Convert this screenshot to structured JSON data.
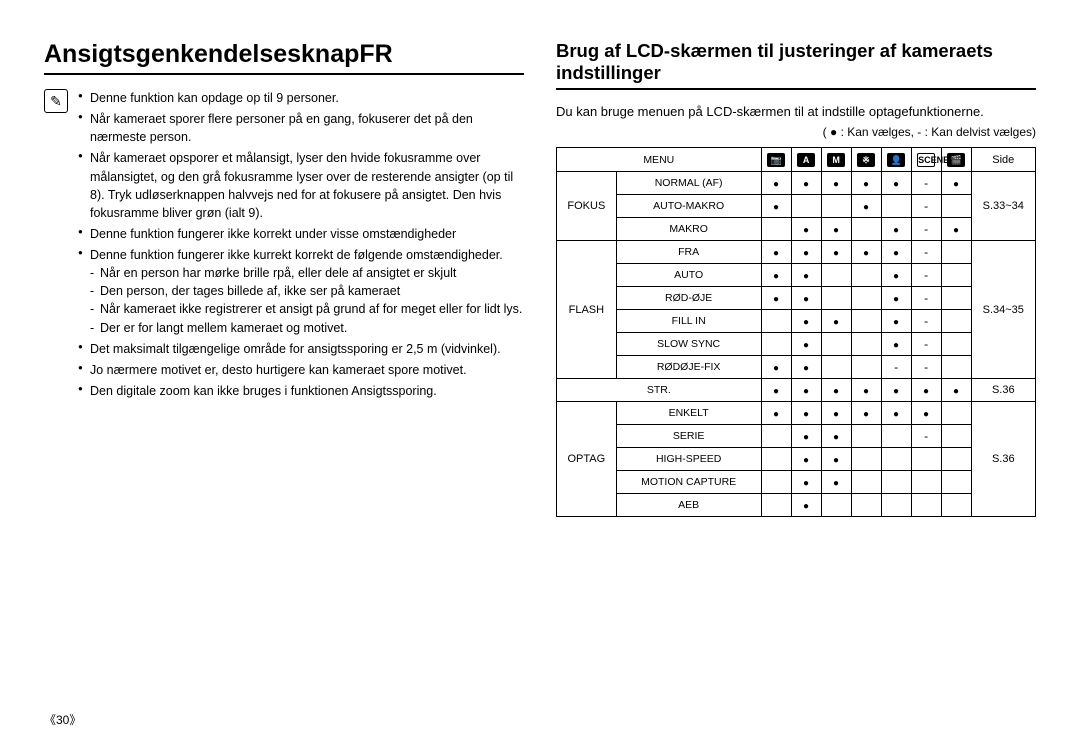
{
  "left": {
    "title": "AnsigtsgenkendelsesknapFR",
    "bullets": [
      {
        "text": "Denne funktion kan opdage op til 9 personer."
      },
      {
        "text": "Når kameraet sporer flere personer på en gang, fokuserer det på den nærmeste person."
      },
      {
        "text": "Når kameraet opsporer et målansigt, lyser den hvide fokusramme over målansigtet, og den grå fokusramme lyser over de resterende ansigter (op til 8). Tryk udløserknappen halvvejs ned for at fokusere på ansigtet. Den hvis fokusramme bliver grøn (ialt 9)."
      },
      {
        "text": "Denne funktion fungerer ikke korrekt under visse omstændigheder"
      },
      {
        "text": "Denne funktion fungerer ikke kurrekt korrekt de følgende omstændigheder.",
        "sub": [
          "Når en person har mørke brille rpå, eller dele af ansigtet er skjult",
          "Den person, der tages billede af, ikke ser på kameraet",
          "Når kameraet ikke registrerer et ansigt på grund af for meget eller for lidt lys.",
          "Der er for langt mellem kameraet og motivet."
        ]
      },
      {
        "text": "Det maksimalt tilgængelige område for ansigtssporing er 2,5 m (vidvinkel)."
      },
      {
        "text": "Jo nærmere motivet er, desto hurtigere kan kameraet spore motivet."
      },
      {
        "text": "Den digitale zoom kan ikke bruges i funktionen Ansigtssporing."
      }
    ]
  },
  "right": {
    "title": "Brug af LCD-skærmen til justeringer af kameraets indstillinger",
    "intro": "Du kan bruge menuen på LCD-skærmen til at indstille optagefunktionerne.",
    "legend": "( ● : Kan vælges, - : Kan delvist vælges)",
    "header": {
      "menu": "MENU",
      "side": "Side"
    },
    "modes": [
      "📷",
      "A",
      "M",
      "※",
      "👤",
      "SCENE",
      "🎬"
    ],
    "groups": [
      {
        "name": "FOKUS",
        "side": "S.33~34",
        "rows": [
          {
            "name": "NORMAL (AF)",
            "cells": [
              "●",
              "●",
              "●",
              "●",
              "●",
              "-",
              "●"
            ]
          },
          {
            "name": "AUTO-MAKRO",
            "cells": [
              "●",
              "",
              "",
              "●",
              "",
              "-",
              ""
            ]
          },
          {
            "name": "MAKRO",
            "cells": [
              "",
              "●",
              "●",
              "",
              "●",
              "-",
              "●"
            ]
          }
        ]
      },
      {
        "name": "FLASH",
        "side": "S.34~35",
        "rows": [
          {
            "name": "FRA",
            "cells": [
              "●",
              "●",
              "●",
              "●",
              "●",
              "-",
              ""
            ]
          },
          {
            "name": "AUTO",
            "cells": [
              "●",
              "●",
              "",
              "",
              "●",
              "-",
              ""
            ]
          },
          {
            "name": "RØD-ØJE",
            "cells": [
              "●",
              "●",
              "",
              "",
              "●",
              "-",
              ""
            ]
          },
          {
            "name": "FILL IN",
            "cells": [
              "",
              "●",
              "●",
              "",
              "●",
              "-",
              ""
            ]
          },
          {
            "name": "SLOW SYNC",
            "cells": [
              "",
              "●",
              "",
              "",
              "●",
              "-",
              ""
            ]
          },
          {
            "name": "RØDØJE-FIX",
            "cells": [
              "●",
              "●",
              "",
              "",
              "-",
              "-",
              ""
            ]
          }
        ]
      },
      {
        "name": "",
        "side": "S.36",
        "rows": [
          {
            "name": "STR.",
            "cells": [
              "●",
              "●",
              "●",
              "●",
              "●",
              "●",
              "●"
            ]
          }
        ]
      },
      {
        "name": "OPTAG",
        "side": "S.36",
        "rows": [
          {
            "name": "ENKELT",
            "cells": [
              "●",
              "●",
              "●",
              "●",
              "●",
              "●",
              ""
            ]
          },
          {
            "name": "SERIE",
            "cells": [
              "",
              "●",
              "●",
              "",
              "",
              "-",
              ""
            ]
          },
          {
            "name": "HIGH-SPEED",
            "cells": [
              "",
              "●",
              "●",
              "",
              "",
              "",
              ""
            ]
          },
          {
            "name": "MOTION CAPTURE",
            "cells": [
              "",
              "●",
              "●",
              "",
              "",
              "",
              ""
            ]
          },
          {
            "name": "AEB",
            "cells": [
              "",
              "●",
              "",
              "",
              "",
              "",
              ""
            ]
          }
        ]
      }
    ]
  },
  "pageNumber": "《30》"
}
